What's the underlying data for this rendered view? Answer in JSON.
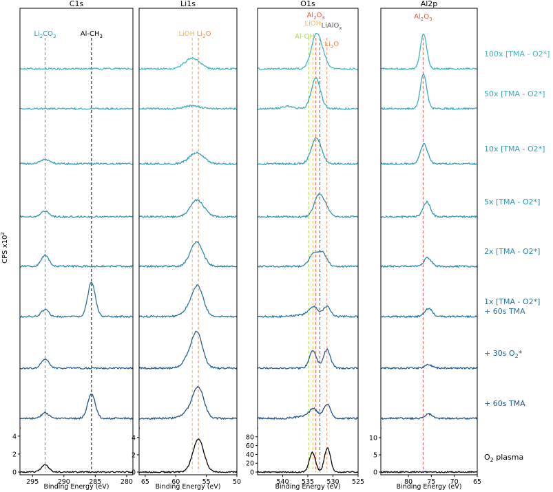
{
  "figure": {
    "ylabel": "CPS x10",
    "ylabel_sup": "2",
    "panels": [
      {
        "id": "c1s",
        "title": "C1s",
        "xlabel": "Binding Energy (eV)",
        "xlim": [
          297,
          279
        ],
        "xticks": [
          295,
          290,
          285,
          280
        ],
        "y_full_max": 4.9,
        "yticks": [
          0,
          2,
          4
        ]
      },
      {
        "id": "li1s",
        "title": "Li1s",
        "xlabel": "Binding Energy (eV)",
        "xlim": [
          66,
          50
        ],
        "xticks": [
          65,
          60,
          55,
          50
        ],
        "y_full_max": 5.1,
        "yticks": [
          0,
          2,
          4
        ]
      },
      {
        "id": "o1s",
        "title": "O1s",
        "xlabel": "Binding Energy (eV)",
        "xlim": [
          545,
          525
        ],
        "xticks": [
          540,
          535,
          530,
          525
        ],
        "y_full_max": 100,
        "yticks": [
          0,
          20,
          40,
          60,
          80
        ]
      },
      {
        "id": "al2p",
        "title": "Al2p",
        "xlabel": "Binding Energy (eV)",
        "xlim": [
          86,
          65
        ],
        "xticks": [
          80,
          75,
          70,
          65
        ],
        "y_full_max": 12.8,
        "yticks": [
          0,
          5,
          10
        ]
      }
    ],
    "reference_lines": [
      {
        "panel": "c1s",
        "x": 293.0,
        "label": "Li",
        "sub": "2",
        "label2": "CO",
        "sub2": "3",
        "color": "#2a9bb7"
      },
      {
        "panel": "c1s",
        "x": 285.6,
        "label": "Al-CH",
        "sub": "3",
        "color": "#000000"
      },
      {
        "panel": "li1s",
        "x": 57.3,
        "label": "LiOH",
        "color": "#f0b55a"
      },
      {
        "panel": "li1s",
        "x": 56.3,
        "label": "Li",
        "sub": "2",
        "label2": "O",
        "color": "#f08a4b"
      },
      {
        "panel": "o1s",
        "x": 534.8,
        "label": "Al-OH",
        "color": "#a8d84a"
      },
      {
        "panel": "o1s",
        "x": 534.0,
        "label": "LiOH",
        "color": "#f0b55a"
      },
      {
        "panel": "o1s",
        "x": 533.4,
        "label": "Al",
        "sub": "2",
        "label2": "O",
        "sub2": "3",
        "color": "#e8553b"
      },
      {
        "panel": "o1s",
        "x": 532.6,
        "label": "LiAlO",
        "sub": "x",
        "color": "#555555"
      },
      {
        "panel": "o1s",
        "x": 531.2,
        "label": "Li",
        "sub": "2",
        "label2": "O",
        "color": "#f08a4b"
      },
      {
        "panel": "al2p",
        "x": 76.8,
        "label": "Al",
        "sub": "2",
        "label2": "O",
        "sub2": "3",
        "color": "#e8553b"
      }
    ],
    "sample_labels": [
      {
        "text": "100x [TMA - O2*]",
        "color": "#3cb8bf"
      },
      {
        "text": "50x [TMA - O2*]",
        "color": "#38adbd"
      },
      {
        "text": "10x [TMA - O2*]",
        "color": "#2f9fb7"
      },
      {
        "text": "5x [TMA - O2*]",
        "color": "#2c93b0"
      },
      {
        "text": "2x [TMA - O2*]",
        "color": "#2a86aa"
      },
      {
        "text": "1x [TMA - O2*]",
        "text2": "+ 60s TMA",
        "color": "#2672a0"
      },
      {
        "text": "+ 30s O",
        "sub": "2",
        "text2_inline": "*",
        "color": "#215f95"
      },
      {
        "text": "+ 60s TMA",
        "color": "#1d508a"
      },
      {
        "text": "O",
        "sub": "2",
        "text2_inline": " plasma",
        "color": "#000000"
      }
    ]
  },
  "chart_data": {
    "type": "line",
    "title": "",
    "stack_order": [
      "100x [TMA - O2*]",
      "50x [TMA - O2*]",
      "10x [TMA - O2*]",
      "5x [TMA - O2*]",
      "2x [TMA - O2*]",
      "1x [TMA - O2*] + 60s TMA",
      "+ 30s O2*",
      "+ 60s TMA",
      "O2 plasma"
    ],
    "panels": {
      "c1s": {
        "y_unit": "CPS x10^2",
        "series": [
          {
            "name": "100x [TMA - O2*]",
            "baseline": 0,
            "peaks": []
          },
          {
            "name": "50x [TMA - O2*]",
            "baseline": 0,
            "peaks": []
          },
          {
            "name": "10x [TMA - O2*]",
            "baseline": 0,
            "peaks": [
              {
                "center": 293.0,
                "height": 0.4,
                "width": 0.8
              }
            ]
          },
          {
            "name": "5x [TMA - O2*]",
            "baseline": 0,
            "peaks": [
              {
                "center": 293.0,
                "height": 0.5,
                "width": 0.6
              }
            ]
          },
          {
            "name": "2x [TMA - O2*]",
            "baseline": 0,
            "peaks": [
              {
                "center": 293.0,
                "height": 1.0,
                "width": 0.6
              }
            ]
          },
          {
            "name": "1x [TMA - O2*] + 60s TMA",
            "baseline": 0,
            "peaks": [
              {
                "center": 293.0,
                "height": 0.6,
                "width": 0.6
              },
              {
                "center": 285.6,
                "height": 3.1,
                "width": 0.6
              }
            ]
          },
          {
            "name": "+ 30s O2*",
            "baseline": 0,
            "peaks": [
              {
                "center": 293.0,
                "height": 0.8,
                "width": 0.6
              }
            ]
          },
          {
            "name": "+ 60s TMA",
            "baseline": 0,
            "peaks": [
              {
                "center": 293.0,
                "height": 0.5,
                "width": 0.6
              },
              {
                "center": 285.6,
                "height": 2.2,
                "width": 0.6
              }
            ]
          },
          {
            "name": "O2 plasma",
            "baseline": 0,
            "peaks": [
              {
                "center": 293.0,
                "height": 0.8,
                "width": 0.6
              }
            ]
          }
        ]
      },
      "li1s": {
        "y_unit": "CPS x10^2",
        "series": [
          {
            "name": "100x [TMA - O2*]",
            "baseline": 0,
            "peaks": [
              {
                "center": 57.3,
                "height": 1.1,
                "width": 1.2
              }
            ]
          },
          {
            "name": "50x [TMA - O2*]",
            "baseline": 0,
            "peaks": [
              {
                "center": 57.3,
                "height": 0.3,
                "width": 1.2
              }
            ]
          },
          {
            "name": "10x [TMA - O2*]",
            "baseline": 0,
            "peaks": [
              {
                "center": 56.6,
                "height": 1.1,
                "width": 1.2
              }
            ]
          },
          {
            "name": "5x [TMA - O2*]",
            "baseline": 0,
            "peaks": [
              {
                "center": 56.5,
                "height": 1.7,
                "width": 1.1
              }
            ]
          },
          {
            "name": "2x [TMA - O2*]",
            "baseline": 0,
            "peaks": [
              {
                "center": 56.6,
                "height": 2.5,
                "width": 1.0
              }
            ]
          },
          {
            "name": "1x [TMA - O2*] + 60s TMA",
            "baseline": 0,
            "peaks": [
              {
                "center": 56.4,
                "height": 3.0,
                "width": 0.9
              },
              {
                "center": 58.0,
                "height": 0.6,
                "width": 1.0
              }
            ]
          },
          {
            "name": "+ 30s O2*",
            "baseline": 0,
            "peaks": [
              {
                "center": 56.5,
                "height": 3.5,
                "width": 0.9
              },
              {
                "center": 58.0,
                "height": 0.8,
                "width": 0.9
              }
            ]
          },
          {
            "name": "+ 60s TMA",
            "baseline": 0,
            "peaks": [
              {
                "center": 56.3,
                "height": 3.1,
                "width": 0.9
              },
              {
                "center": 58.0,
                "height": 0.6,
                "width": 1.0
              }
            ]
          },
          {
            "name": "O2 plasma",
            "baseline": 0,
            "peaks": [
              {
                "center": 56.3,
                "height": 3.8,
                "width": 0.9
              }
            ]
          }
        ]
      },
      "o1s": {
        "y_unit": "CPS x10^2",
        "series": [
          {
            "name": "100x [TMA - O2*]",
            "baseline": 0,
            "peaks": [
              {
                "center": 533.3,
                "height": 74,
                "width": 1.0
              },
              {
                "center": 531.8,
                "height": 12,
                "width": 0.9
              }
            ]
          },
          {
            "name": "50x [TMA - O2*]",
            "baseline": 0,
            "peaks": [
              {
                "center": 533.4,
                "height": 66,
                "width": 0.9
              },
              {
                "center": 539.0,
                "height": 5,
                "width": 1.2
              }
            ]
          },
          {
            "name": "10x [TMA - O2*]",
            "baseline": 0,
            "peaks": [
              {
                "center": 533.3,
                "height": 56,
                "width": 1.0
              }
            ]
          },
          {
            "name": "5x [TMA - O2*]",
            "baseline": 0,
            "peaks": [
              {
                "center": 532.8,
                "height": 47,
                "width": 0.9
              },
              {
                "center": 531.3,
                "height": 15,
                "width": 0.7
              }
            ]
          },
          {
            "name": "2x [TMA - O2*]",
            "baseline": 0,
            "peaks": [
              {
                "center": 533.8,
                "height": 28,
                "width": 0.9
              },
              {
                "center": 532.0,
                "height": 27,
                "width": 0.8
              }
            ]
          },
          {
            "name": "1x [TMA - O2*] + 60s TMA",
            "baseline": 0,
            "peaks": [
              {
                "center": 533.8,
                "height": 20,
                "width": 0.9
              },
              {
                "center": 531.2,
                "height": 22,
                "width": 0.7
              },
              {
                "center": 536.0,
                "height": 4,
                "width": 1.5
              }
            ]
          },
          {
            "name": "+ 30s O2*",
            "baseline": 0,
            "peaks": [
              {
                "center": 534.0,
                "height": 38,
                "width": 0.7
              },
              {
                "center": 531.2,
                "height": 40,
                "width": 0.7
              }
            ]
          },
          {
            "name": "+ 60s TMA",
            "baseline": 0,
            "peaks": [
              {
                "center": 533.9,
                "height": 20,
                "width": 0.8
              },
              {
                "center": 531.2,
                "height": 31,
                "width": 0.7
              },
              {
                "center": 536.0,
                "height": 4,
                "width": 1.5
              }
            ]
          },
          {
            "name": "O2 plasma",
            "baseline": 0,
            "peaks": [
              {
                "center": 534.1,
                "height": 45,
                "width": 0.6
              },
              {
                "center": 531.1,
                "height": 55,
                "width": 0.6
              }
            ]
          }
        ]
      },
      "al2p": {
        "y_unit": "CPS x10^2",
        "series": [
          {
            "name": "100x [TMA - O2*]",
            "baseline": 0,
            "peaks": [
              {
                "center": 76.7,
                "height": 14,
                "width": 0.7
              }
            ]
          },
          {
            "name": "50x [TMA - O2*]",
            "baseline": 0,
            "peaks": [
              {
                "center": 76.7,
                "height": 14,
                "width": 0.7
              }
            ]
          },
          {
            "name": "10x [TMA - O2*]",
            "baseline": 0,
            "peaks": [
              {
                "center": 76.6,
                "height": 8,
                "width": 0.8
              }
            ]
          },
          {
            "name": "5x [TMA - O2*]",
            "baseline": 0,
            "peaks": [
              {
                "center": 76.0,
                "height": 6,
                "width": 0.8
              }
            ]
          },
          {
            "name": "2x [TMA - O2*]",
            "baseline": 0,
            "peaks": [
              {
                "center": 75.8,
                "height": 3.5,
                "width": 0.8
              }
            ]
          },
          {
            "name": "1x [TMA - O2*] + 60s TMA",
            "baseline": 0,
            "peaks": [
              {
                "center": 75.6,
                "height": 3.2,
                "width": 0.8
              }
            ]
          },
          {
            "name": "+ 30s O2*",
            "baseline": 0,
            "peaks": [
              {
                "center": 75.6,
                "height": 1.4,
                "width": 0.8
              }
            ]
          },
          {
            "name": "+ 60s TMA",
            "baseline": 0,
            "peaks": [
              {
                "center": 75.6,
                "height": 1.8,
                "width": 0.8
              }
            ]
          },
          {
            "name": "O2 plasma",
            "baseline": 0,
            "peaks": []
          }
        ]
      }
    },
    "series_colors": [
      "#3cb8bf",
      "#38adbd",
      "#2f9fb7",
      "#2c93b0",
      "#2a86aa",
      "#2672a0",
      "#215f95",
      "#1d508a",
      "#000000"
    ]
  }
}
